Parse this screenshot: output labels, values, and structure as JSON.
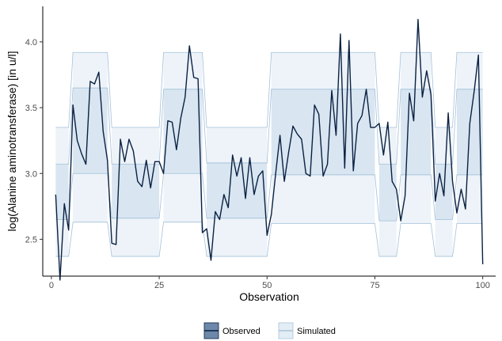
{
  "chart_data": {
    "type": "line",
    "xlabel": "Observation",
    "ylabel": "log(Alanine aminotransferase) [in u/l]",
    "xlim": [
      -2,
      103
    ],
    "ylim": [
      2.22,
      4.27
    ],
    "x_ticks": [
      0,
      25,
      50,
      75,
      100
    ],
    "x_tick_labels": [
      "0",
      "25",
      "50",
      "75",
      "100"
    ],
    "y_ticks": [
      2.5,
      3.0,
      3.5,
      4.0
    ],
    "y_tick_labels": [
      "2.5",
      "3.0",
      "3.5",
      "4.0"
    ],
    "grid": false,
    "legend_position": "bottom",
    "observed": {
      "name": "Observed",
      "color": "#0b2143",
      "x": [
        1,
        2,
        3,
        4,
        5,
        6,
        7,
        8,
        9,
        10,
        11,
        12,
        13,
        14,
        15,
        16,
        17,
        18,
        19,
        20,
        21,
        22,
        23,
        24,
        25,
        26,
        27,
        28,
        29,
        30,
        31,
        32,
        33,
        34,
        35,
        36,
        37,
        38,
        39,
        40,
        41,
        42,
        43,
        44,
        45,
        46,
        47,
        48,
        49,
        50,
        51,
        52,
        53,
        54,
        55,
        56,
        57,
        58,
        59,
        60,
        61,
        62,
        63,
        64,
        65,
        66,
        67,
        68,
        69,
        70,
        71,
        72,
        73,
        74,
        75,
        76,
        77,
        78,
        79,
        80,
        81,
        82,
        83,
        84,
        85,
        86,
        87,
        88,
        89,
        90,
        91,
        92,
        93,
        94,
        95,
        96,
        97,
        98,
        99,
        100
      ],
      "y": [
        2.84,
        2.19,
        2.77,
        2.57,
        3.52,
        3.25,
        3.15,
        3.07,
        3.7,
        3.68,
        3.77,
        3.32,
        3.1,
        2.47,
        2.46,
        3.26,
        3.09,
        3.26,
        3.17,
        2.94,
        2.9,
        3.1,
        2.89,
        3.09,
        3.09,
        3.0,
        3.4,
        3.39,
        3.18,
        3.42,
        3.58,
        3.97,
        3.73,
        3.72,
        2.55,
        2.58,
        2.34,
        2.71,
        2.65,
        2.84,
        2.74,
        3.14,
        2.98,
        3.12,
        2.81,
        3.12,
        2.84,
        2.98,
        3.02,
        2.53,
        2.69,
        3.0,
        3.29,
        2.94,
        3.16,
        3.36,
        3.3,
        3.26,
        3.0,
        2.98,
        3.52,
        3.45,
        2.98,
        3.07,
        3.63,
        3.29,
        4.06,
        3.04,
        4.01,
        3.02,
        3.38,
        3.44,
        3.64,
        3.35,
        3.35,
        3.38,
        3.14,
        3.39,
        2.94,
        2.88,
        2.64,
        2.83,
        3.61,
        3.4,
        4.17,
        3.58,
        3.78,
        3.6,
        2.79,
        3.0,
        2.83,
        3.46,
        2.94,
        2.7,
        2.88,
        2.73,
        3.38,
        3.62,
        3.9,
        2.31
      ]
    },
    "simulated": {
      "name": "Simulated",
      "segments": [
        {
          "x": [
            1,
            4
          ],
          "outer": [
            2.37,
            3.35
          ],
          "inner": [
            2.65,
            3.07
          ]
        },
        {
          "x": [
            5,
            13
          ],
          "outer": [
            2.63,
            3.92
          ],
          "inner": [
            3.0,
            3.65
          ]
        },
        {
          "x": [
            14,
            25
          ],
          "outer": [
            2.37,
            3.35
          ],
          "inner": [
            2.66,
            3.07
          ]
        },
        {
          "x": [
            26,
            35
          ],
          "outer": [
            2.63,
            3.92
          ],
          "inner": [
            3.0,
            3.64
          ]
        },
        {
          "x": [
            36,
            50
          ],
          "outer": [
            2.37,
            3.35
          ],
          "inner": [
            2.66,
            3.08
          ]
        },
        {
          "x": [
            51,
            75
          ],
          "outer": [
            2.62,
            3.92
          ],
          "inner": [
            2.99,
            3.64
          ]
        },
        {
          "x": [
            76,
            80
          ],
          "outer": [
            2.37,
            3.35
          ],
          "inner": [
            2.64,
            3.07
          ]
        },
        {
          "x": [
            81,
            88
          ],
          "outer": [
            2.62,
            3.92
          ],
          "inner": [
            2.99,
            3.64
          ]
        },
        {
          "x": [
            89,
            93
          ],
          "outer": [
            2.37,
            3.35
          ],
          "inner": [
            2.65,
            3.07
          ]
        },
        {
          "x": [
            94,
            100
          ],
          "outer": [
            2.62,
            3.92
          ],
          "inner": [
            2.99,
            3.64
          ]
        }
      ],
      "fill_color": "#c2d6e8",
      "edge_color": "#8fb1cf"
    },
    "legend": [
      {
        "label": "Observed",
        "swatch_fill": "#6d88a8",
        "swatch_line": "#0b2143"
      },
      {
        "label": "Simulated",
        "swatch_fill": "#e3edf5",
        "swatch_line": "#a9c3da"
      }
    ]
  }
}
